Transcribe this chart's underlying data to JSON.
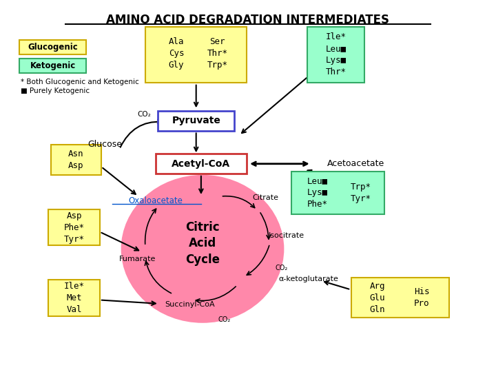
{
  "title": "AMINO ACID DEGRADATION INTERMEDIATES",
  "bg_color": "#ffffff",
  "glucogenic_color": "#ffff99",
  "glucogenic_border": "#ccaa00",
  "ketogenic_color": "#99ffcc",
  "ketogenic_border": "#33aa66",
  "pyruvate_border": "#4444cc",
  "acetylcoa_border": "#cc3333",
  "cycle_fill": "#ff88aa",
  "legend_glucogenic": "Glucogenic",
  "legend_ketogenic": "Ketogenic",
  "note1": "* Both Glucogenic and Ketogenic",
  "note2": "■ Purely Ketogenic"
}
